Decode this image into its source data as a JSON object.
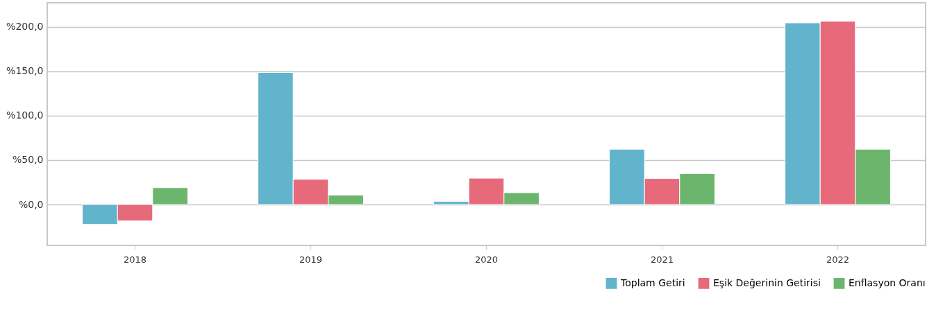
{
  "chart_data": {
    "type": "bar",
    "categories": [
      "2018",
      "2019",
      "2020",
      "2021",
      "2022"
    ],
    "series": [
      {
        "name": "Toplam Getiri",
        "color": "#62b3cc",
        "values": [
          -22.4,
          148.6,
          3.5,
          62.2,
          204.4
        ]
      },
      {
        "name": "Eşik Değerinin Getirisi",
        "color": "#e76a7b",
        "values": [
          -18.5,
          28.3,
          29.6,
          29.2,
          206.2
        ]
      },
      {
        "name": "Enflasyon Oranı",
        "color": "#6bb66c",
        "values": [
          18.9,
          10.5,
          13.3,
          34.8,
          62.2
        ]
      }
    ],
    "ylim": [
      -46,
      227
    ],
    "yticks": [
      {
        "value": 0,
        "label": "%0,0"
      },
      {
        "value": 50,
        "label": "%50,0"
      },
      {
        "value": 100,
        "label": "%100,0"
      },
      {
        "value": 150,
        "label": "%150,0"
      },
      {
        "value": 200,
        "label": "%200,0"
      }
    ],
    "grid": "y",
    "legend": "bottom right"
  }
}
